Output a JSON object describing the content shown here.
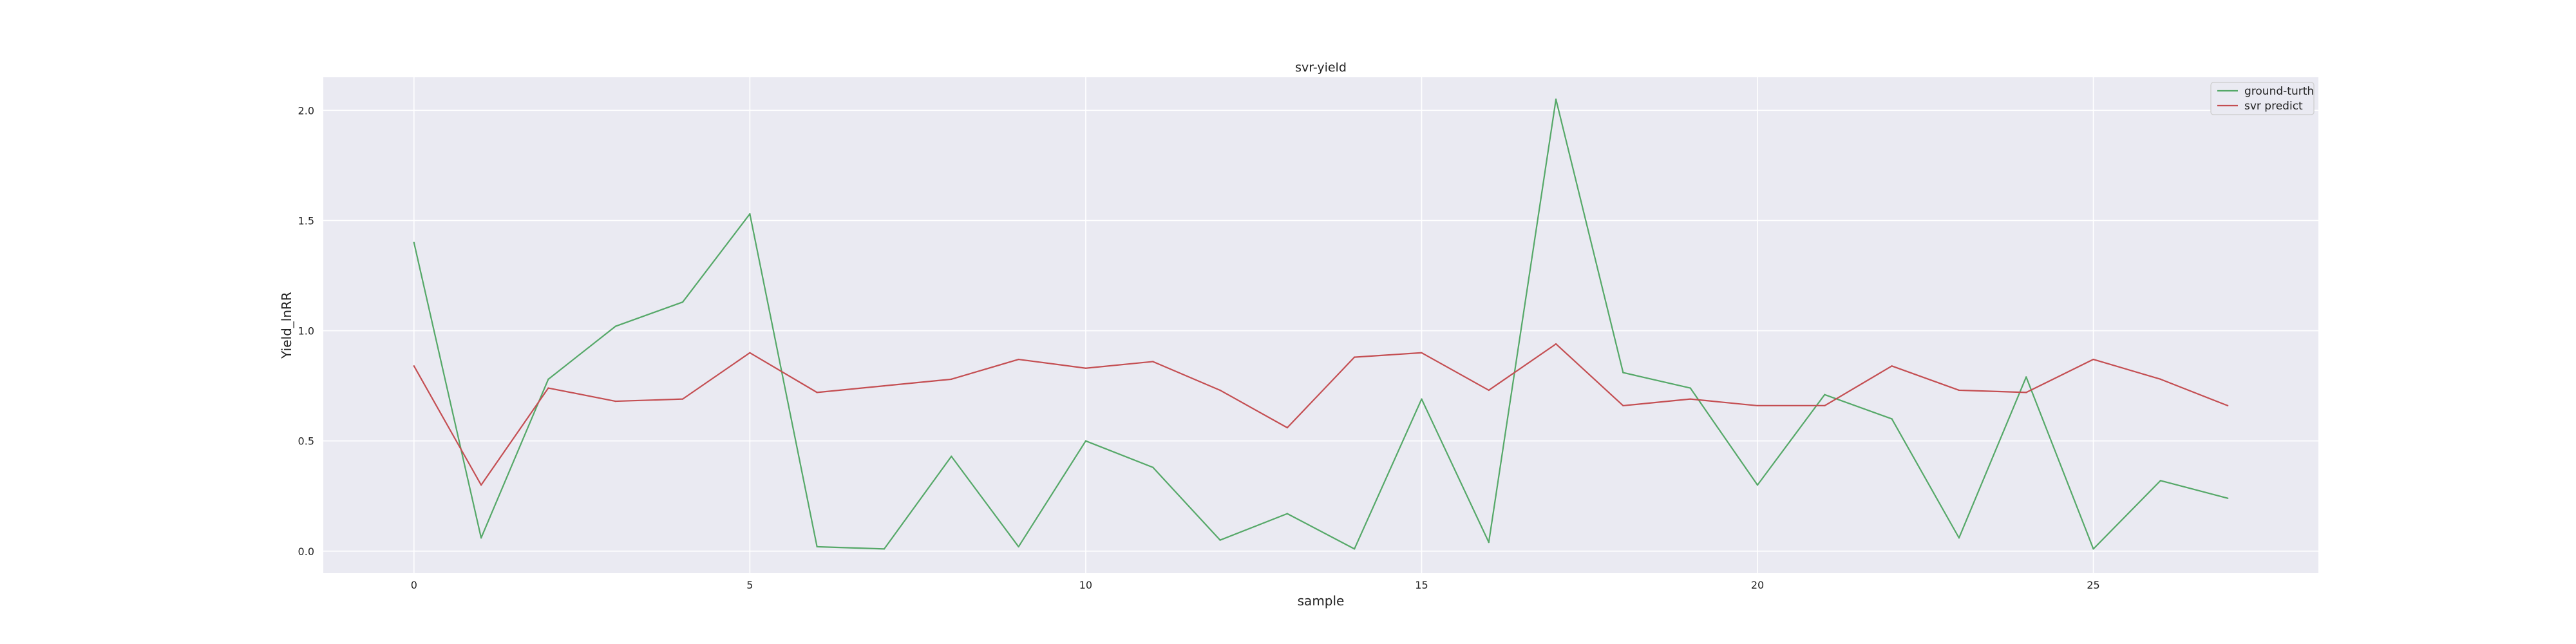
{
  "chart_data": {
    "type": "line",
    "title": "svr-yield",
    "xlabel": "sample",
    "ylabel": "Yield_lnRR",
    "xlim": [
      -1.35,
      28.35
    ],
    "ylim": [
      -0.1,
      2.15
    ],
    "xticks": [
      0,
      5,
      10,
      15,
      20,
      25
    ],
    "yticks": [
      0.0,
      0.5,
      1.0,
      1.5,
      2.0
    ],
    "xtick_labels": [
      "0",
      "5",
      "10",
      "15",
      "20",
      "25"
    ],
    "ytick_labels": [
      "0.0",
      "0.5",
      "1.0",
      "1.5",
      "2.0"
    ],
    "grid": true,
    "legend_position": "top-right",
    "x": [
      0,
      1,
      2,
      3,
      4,
      5,
      6,
      7,
      8,
      9,
      10,
      11,
      12,
      13,
      14,
      15,
      16,
      17,
      18,
      19,
      20,
      21,
      22,
      23,
      24,
      25,
      26,
      27
    ],
    "series": [
      {
        "name": "ground-turth",
        "color": "#55a868",
        "values": [
          1.4,
          0.06,
          0.78,
          1.02,
          1.13,
          1.53,
          0.02,
          0.01,
          0.43,
          0.02,
          0.5,
          0.38,
          0.05,
          0.17,
          0.01,
          0.69,
          0.04,
          2.05,
          0.81,
          0.74,
          0.3,
          0.71,
          0.6,
          0.06,
          0.79,
          0.01,
          0.32,
          0.24
        ]
      },
      {
        "name": "svr predict",
        "color": "#c44e52",
        "values": [
          0.84,
          0.3,
          0.74,
          0.68,
          0.69,
          0.9,
          0.72,
          0.75,
          0.78,
          0.87,
          0.83,
          0.86,
          0.73,
          0.56,
          0.88,
          0.9,
          0.73,
          0.94,
          0.66,
          0.69,
          0.66,
          0.66,
          0.84,
          0.73,
          0.72,
          0.87,
          0.78,
          0.66
        ]
      }
    ],
    "background_color": "#eaeaf2",
    "grid_color": "#ffffff"
  }
}
